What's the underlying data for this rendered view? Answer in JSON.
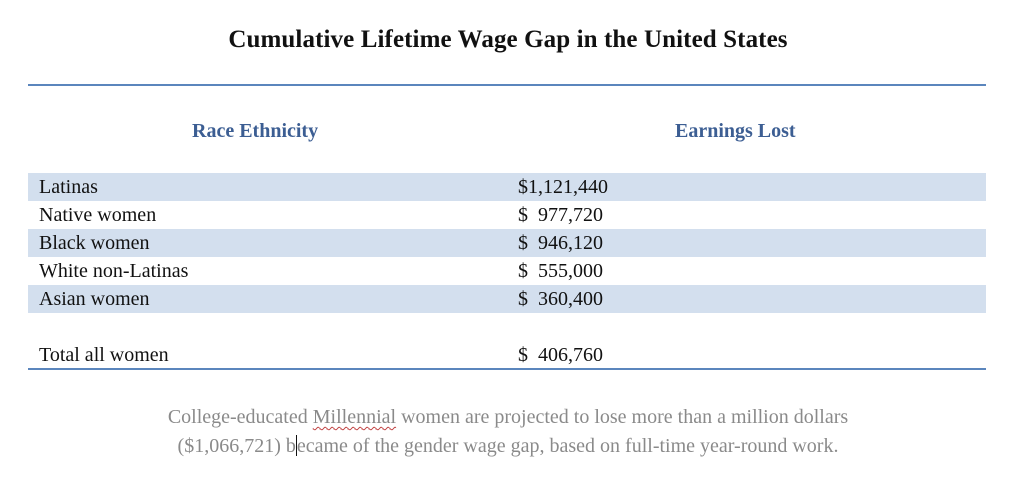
{
  "title": "Cumulative Lifetime Wage Gap in the United States",
  "table": {
    "headers": {
      "race": "Race Ethnicity",
      "earnings": "Earnings Lost"
    },
    "rows": [
      {
        "label": "Latinas",
        "value": "$1,121,440"
      },
      {
        "label": "Native women",
        "value": "$  977,720"
      },
      {
        "label": "Black women",
        "value": "$  946,120"
      },
      {
        "label": "White non-Latinas",
        "value": "$  555,000"
      },
      {
        "label": "Asian women",
        "value": "$  360,400"
      }
    ],
    "total": {
      "label": "Total all women",
      "value": "$  406,760"
    }
  },
  "caption": {
    "line1_before": "College-educated ",
    "line1_flagged": "Millennial",
    "line1_after": " women are projected to lose more than a million dollars",
    "line2_before_cursor": "($1,066,721) b",
    "line2_after_cursor": "ecame of the gender wage gap, based on full-time year-round work."
  },
  "colors": {
    "rule": "#5b86bd",
    "header": "#3c5e93",
    "band": "#d3dfee",
    "caption": "#8a8a8a"
  }
}
